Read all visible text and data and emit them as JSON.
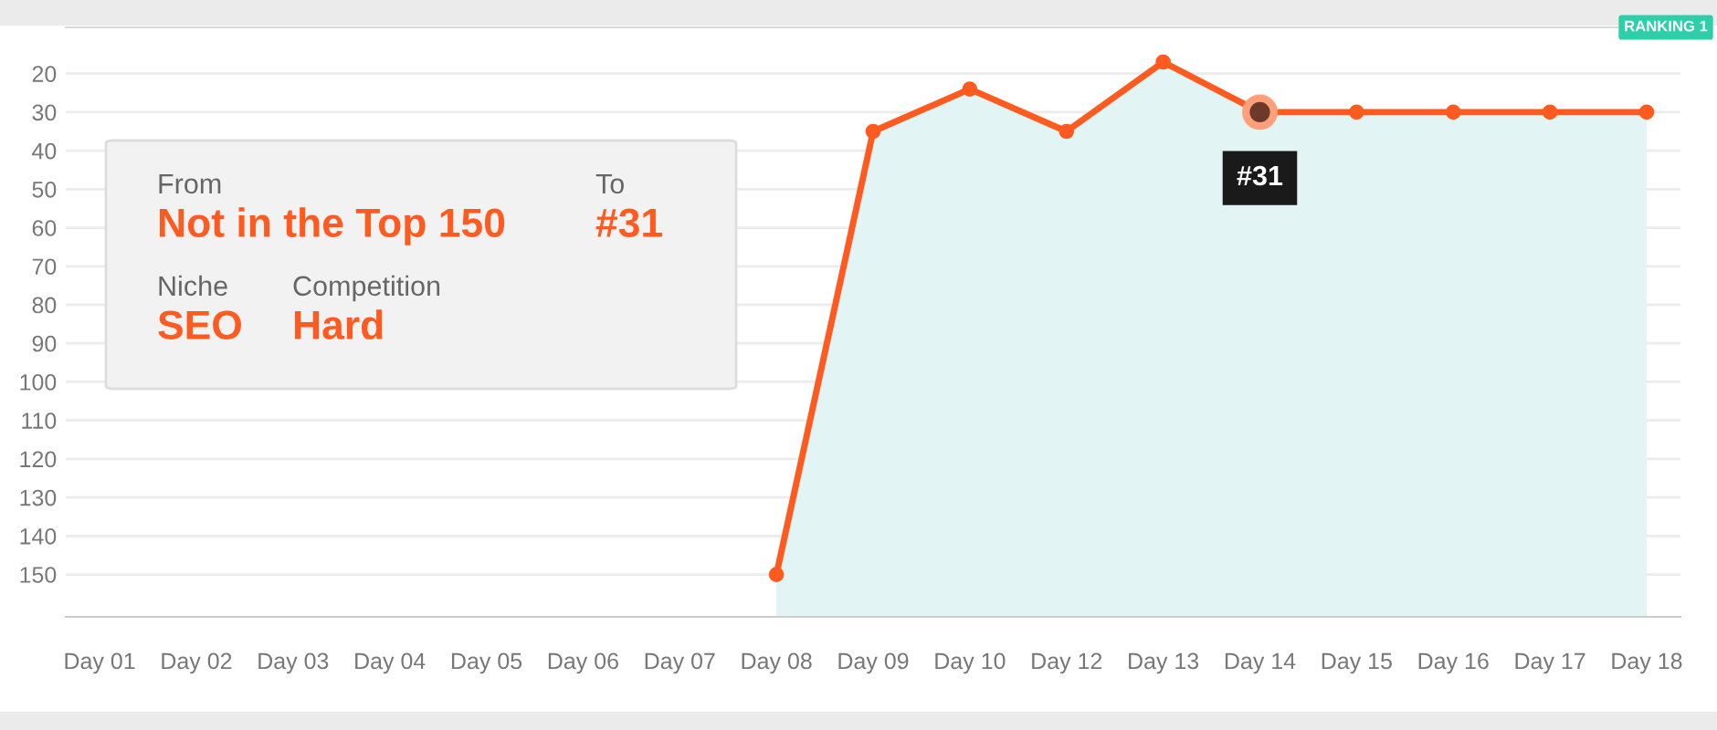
{
  "chart_data": {
    "type": "line",
    "categories": [
      "Day 01",
      "Day 02",
      "Day 03",
      "Day 04",
      "Day 05",
      "Day 06",
      "Day 07",
      "Day 08",
      "Day 09",
      "Day 10",
      "Day 12",
      "Day 13",
      "Day 14",
      "Day 15",
      "Day 16",
      "Day 17",
      "Day 18"
    ],
    "series": [
      {
        "color": "#ff5a1f",
        "values": [
          null,
          null,
          null,
          null,
          null,
          null,
          null,
          150,
          35,
          24,
          35,
          17,
          30,
          30,
          30,
          30,
          30
        ],
        "lower": [
          null,
          null,
          null,
          null,
          null,
          null,
          null,
          150,
          35,
          24,
          35,
          17,
          30,
          30,
          30,
          30,
          30
        ],
        "upper": [
          null,
          null,
          null,
          null,
          null,
          null,
          null,
          161,
          161,
          161,
          161,
          161,
          161,
          161,
          161,
          161,
          161
        ]
      }
    ],
    "ylim": [
      161,
      8
    ],
    "yticks": [
      20,
      30,
      40,
      50,
      60,
      70,
      80,
      90,
      100,
      110,
      120,
      130,
      140,
      150
    ],
    "grid": "y",
    "marker": "circle",
    "line_style": "solid",
    "annotations": [
      "From",
      "Not in the Top 150",
      "To",
      "#31",
      "Niche",
      "SEO",
      "Competition",
      "Hard",
      "RANKING 1",
      {
        "text": "#31",
        "x": "Day 14",
        "y": 30
      }
    ]
  }
}
